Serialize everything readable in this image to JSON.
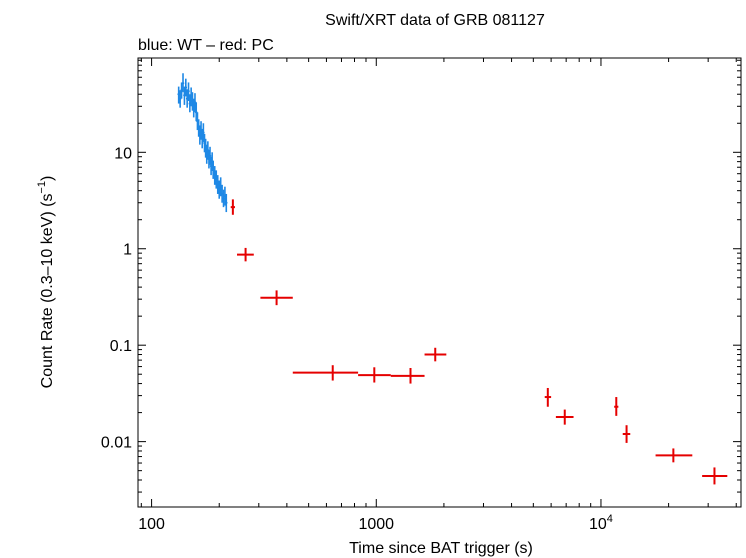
{
  "chart_data": {
    "type": "scatter",
    "title": "Swift/XRT data of GRB 081127",
    "subtitle": "blue: WT – red: PC",
    "xlabel": "Time since BAT trigger (s)",
    "ylabel_main": "Count Rate (0.3–10 keV) (s",
    "ylabel_sup": "−1",
    "ylabel_close": ")",
    "xscale": "log",
    "yscale": "log",
    "xlim": [
      87,
      42000
    ],
    "ylim": [
      0.0021,
      95
    ],
    "x_ticks": [
      {
        "value": 100,
        "label": "100"
      },
      {
        "value": 1000,
        "label": "1000"
      },
      {
        "value": 10000,
        "label": "10",
        "sup": "4"
      }
    ],
    "y_ticks": [
      {
        "value": 0.01,
        "label": "0.01"
      },
      {
        "value": 0.1,
        "label": "0.1"
      },
      {
        "value": 1,
        "label": "1"
      },
      {
        "value": 10,
        "label": "10"
      }
    ],
    "colors": {
      "wt": "#1e88e5",
      "pc": "#e50000"
    },
    "series": [
      {
        "mode": "WT",
        "points": [
          {
            "t": 132,
            "r": 40,
            "lo": 32,
            "hi": 48
          },
          {
            "t": 134,
            "r": 36,
            "lo": 29,
            "hi": 44
          },
          {
            "t": 136,
            "r": 44,
            "lo": 36,
            "hi": 53
          },
          {
            "t": 138,
            "r": 52,
            "lo": 42,
            "hi": 66
          },
          {
            "t": 140,
            "r": 39,
            "lo": 31,
            "hi": 48
          },
          {
            "t": 142,
            "r": 47,
            "lo": 38,
            "hi": 58
          },
          {
            "t": 144,
            "r": 36,
            "lo": 29,
            "hi": 45
          },
          {
            "t": 146,
            "r": 43,
            "lo": 34,
            "hi": 53
          },
          {
            "t": 148,
            "r": 32,
            "lo": 26,
            "hi": 40
          },
          {
            "t": 150,
            "r": 38,
            "lo": 30,
            "hi": 47
          },
          {
            "t": 152,
            "r": 34,
            "lo": 27,
            "hi": 42
          },
          {
            "t": 154,
            "r": 29,
            "lo": 23,
            "hi": 36
          },
          {
            "t": 156,
            "r": 33,
            "lo": 26,
            "hi": 41
          },
          {
            "t": 158,
            "r": 26,
            "lo": 21,
            "hi": 33
          },
          {
            "t": 160,
            "r": 21,
            "lo": 17,
            "hi": 26
          },
          {
            "t": 162,
            "r": 18,
            "lo": 14.5,
            "hi": 22
          },
          {
            "t": 164,
            "r": 15,
            "lo": 12,
            "hi": 19
          },
          {
            "t": 166,
            "r": 17,
            "lo": 13.5,
            "hi": 21
          },
          {
            "t": 168,
            "r": 14,
            "lo": 11,
            "hi": 17.5
          },
          {
            "t": 170,
            "r": 16,
            "lo": 12.8,
            "hi": 20
          },
          {
            "t": 172,
            "r": 12.5,
            "lo": 10,
            "hi": 15.5
          },
          {
            "t": 174,
            "r": 11,
            "lo": 8.8,
            "hi": 13.8
          },
          {
            "t": 176,
            "r": 9.5,
            "lo": 7.6,
            "hi": 12
          },
          {
            "t": 178,
            "r": 10.5,
            "lo": 8.4,
            "hi": 13
          },
          {
            "t": 180,
            "r": 8.5,
            "lo": 6.8,
            "hi": 10.6
          },
          {
            "t": 182,
            "r": 9.2,
            "lo": 7.4,
            "hi": 11.4
          },
          {
            "t": 184,
            "r": 7.2,
            "lo": 5.8,
            "hi": 9
          },
          {
            "t": 186,
            "r": 8,
            "lo": 6.4,
            "hi": 10
          },
          {
            "t": 188,
            "r": 6.6,
            "lo": 5.3,
            "hi": 8.2
          },
          {
            "t": 191,
            "r": 5.8,
            "lo": 4.6,
            "hi": 7.2
          },
          {
            "t": 194,
            "r": 5.2,
            "lo": 4.2,
            "hi": 6.5
          },
          {
            "t": 197,
            "r": 4.6,
            "lo": 3.7,
            "hi": 5.8
          },
          {
            "t": 200,
            "r": 4.1,
            "lo": 3.3,
            "hi": 5.1
          },
          {
            "t": 203,
            "r": 4.4,
            "lo": 3.5,
            "hi": 5.5
          },
          {
            "t": 206,
            "r": 3.7,
            "lo": 3,
            "hi": 4.6
          },
          {
            "t": 209,
            "r": 3.3,
            "lo": 2.7,
            "hi": 4.1
          },
          {
            "t": 212,
            "r": 3.5,
            "lo": 2.8,
            "hi": 4.4
          },
          {
            "t": 215,
            "r": 3.0,
            "lo": 2.4,
            "hi": 3.7
          }
        ]
      },
      {
        "mode": "PC",
        "points": [
          {
            "t": 230,
            "tlo": 225,
            "thi": 235,
            "r": 2.7,
            "lo": 2.25,
            "hi": 3.25
          },
          {
            "t": 262,
            "tlo": 240,
            "thi": 285,
            "r": 0.87,
            "lo": 0.74,
            "hi": 1.02
          },
          {
            "t": 360,
            "tlo": 305,
            "thi": 425,
            "r": 0.31,
            "lo": 0.26,
            "hi": 0.37
          },
          {
            "t": 640,
            "tlo": 425,
            "thi": 830,
            "r": 0.052,
            "lo": 0.043,
            "hi": 0.062
          },
          {
            "t": 980,
            "tlo": 830,
            "thi": 1160,
            "r": 0.049,
            "lo": 0.041,
            "hi": 0.059
          },
          {
            "t": 1420,
            "tlo": 1160,
            "thi": 1640,
            "r": 0.048,
            "lo": 0.04,
            "hi": 0.058
          },
          {
            "t": 1830,
            "tlo": 1640,
            "thi": 2050,
            "r": 0.08,
            "lo": 0.068,
            "hi": 0.094
          },
          {
            "t": 5800,
            "tlo": 5620,
            "thi": 6000,
            "r": 0.029,
            "lo": 0.023,
            "hi": 0.036
          },
          {
            "t": 6900,
            "tlo": 6300,
            "thi": 7550,
            "r": 0.018,
            "lo": 0.015,
            "hi": 0.0215
          },
          {
            "t": 11700,
            "tlo": 11450,
            "thi": 11950,
            "r": 0.023,
            "lo": 0.0185,
            "hi": 0.029
          },
          {
            "t": 13000,
            "tlo": 12500,
            "thi": 13500,
            "r": 0.012,
            "lo": 0.0097,
            "hi": 0.0148
          },
          {
            "t": 21000,
            "tlo": 17500,
            "thi": 25500,
            "r": 0.0072,
            "lo": 0.0061,
            "hi": 0.0085
          },
          {
            "t": 32000,
            "tlo": 28200,
            "thi": 36500,
            "r": 0.0044,
            "lo": 0.0036,
            "hi": 0.0054
          }
        ]
      }
    ]
  }
}
